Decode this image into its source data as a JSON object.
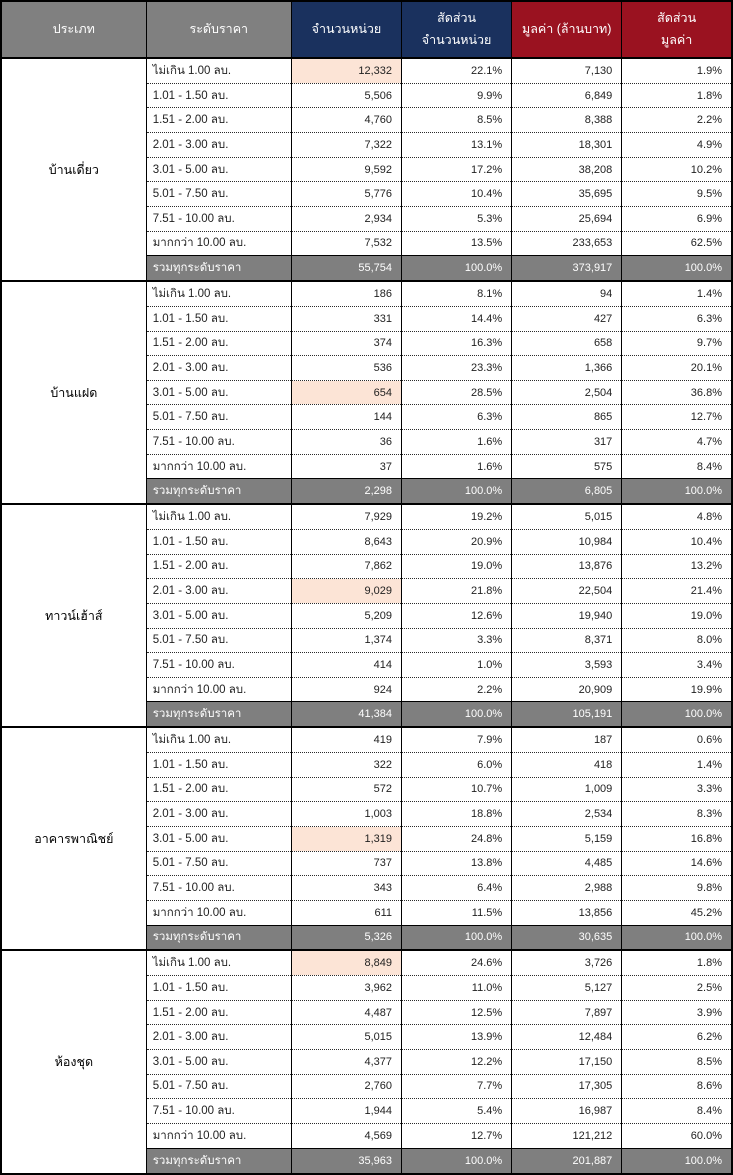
{
  "colors": {
    "header-gray": "#808080",
    "header-navy": "#1A315E",
    "header-red": "#9A1220",
    "highlight": "#FCE4D6",
    "total-gray": "#7F7F7F"
  },
  "chart_data": {
    "type": "table",
    "title": "",
    "columns": [
      {
        "line1": "ประเภท",
        "line2": ""
      },
      {
        "line1": "ระดับราคา",
        "line2": ""
      },
      {
        "line1": "จำนวนหน่วย",
        "line2": ""
      },
      {
        "line1": "สัดส่วน",
        "line2": "จำนวนหน่วย"
      },
      {
        "line1": "มูลค่า (ล้านบาท)",
        "line2": ""
      },
      {
        "line1": "สัดส่วน",
        "line2": "มูลค่า"
      }
    ],
    "total_label": "รวมทุกระดับราคา",
    "groups": [
      {
        "type": "บ้านเดี่ยว",
        "rows": [
          {
            "level": "ไม่เกิน 1.00 ลบ.",
            "units": "12,332",
            "units_share": "22.1%",
            "value": "7,130",
            "value_share": "1.9%",
            "highlight": true
          },
          {
            "level": "1.01 - 1.50 ลบ.",
            "units": "5,506",
            "units_share": "9.9%",
            "value": "6,849",
            "value_share": "1.8%",
            "highlight": false
          },
          {
            "level": "1.51 - 2.00 ลบ.",
            "units": "4,760",
            "units_share": "8.5%",
            "value": "8,388",
            "value_share": "2.2%",
            "highlight": false
          },
          {
            "level": "2.01 - 3.00 ลบ.",
            "units": "7,322",
            "units_share": "13.1%",
            "value": "18,301",
            "value_share": "4.9%",
            "highlight": false
          },
          {
            "level": "3.01 - 5.00 ลบ.",
            "units": "9,592",
            "units_share": "17.2%",
            "value": "38,208",
            "value_share": "10.2%",
            "highlight": false
          },
          {
            "level": "5.01 - 7.50 ลบ.",
            "units": "5,776",
            "units_share": "10.4%",
            "value": "35,695",
            "value_share": "9.5%",
            "highlight": false
          },
          {
            "level": "7.51 - 10.00 ลบ.",
            "units": "2,934",
            "units_share": "5.3%",
            "value": "25,694",
            "value_share": "6.9%",
            "highlight": false
          },
          {
            "level": "มากกว่า 10.00 ลบ.",
            "units": "7,532",
            "units_share": "13.5%",
            "value": "233,653",
            "value_share": "62.5%",
            "highlight": false
          }
        ],
        "total": {
          "units": "55,754",
          "units_share": "100.0%",
          "value": "373,917",
          "value_share": "100.0%"
        }
      },
      {
        "type": "บ้านแฝด",
        "rows": [
          {
            "level": "ไม่เกิน 1.00 ลบ.",
            "units": "186",
            "units_share": "8.1%",
            "value": "94",
            "value_share": "1.4%",
            "highlight": false
          },
          {
            "level": "1.01 - 1.50 ลบ.",
            "units": "331",
            "units_share": "14.4%",
            "value": "427",
            "value_share": "6.3%",
            "highlight": false
          },
          {
            "level": "1.51 - 2.00 ลบ.",
            "units": "374",
            "units_share": "16.3%",
            "value": "658",
            "value_share": "9.7%",
            "highlight": false
          },
          {
            "level": "2.01 - 3.00 ลบ.",
            "units": "536",
            "units_share": "23.3%",
            "value": "1,366",
            "value_share": "20.1%",
            "highlight": false
          },
          {
            "level": "3.01 - 5.00 ลบ.",
            "units": "654",
            "units_share": "28.5%",
            "value": "2,504",
            "value_share": "36.8%",
            "highlight": true
          },
          {
            "level": "5.01 - 7.50 ลบ.",
            "units": "144",
            "units_share": "6.3%",
            "value": "865",
            "value_share": "12.7%",
            "highlight": false
          },
          {
            "level": "7.51 - 10.00 ลบ.",
            "units": "36",
            "units_share": "1.6%",
            "value": "317",
            "value_share": "4.7%",
            "highlight": false
          },
          {
            "level": "มากกว่า 10.00 ลบ.",
            "units": "37",
            "units_share": "1.6%",
            "value": "575",
            "value_share": "8.4%",
            "highlight": false
          }
        ],
        "total": {
          "units": "2,298",
          "units_share": "100.0%",
          "value": "6,805",
          "value_share": "100.0%"
        }
      },
      {
        "type": "ทาวน์เฮ้าส์",
        "rows": [
          {
            "level": "ไม่เกิน 1.00 ลบ.",
            "units": "7,929",
            "units_share": "19.2%",
            "value": "5,015",
            "value_share": "4.8%",
            "highlight": false
          },
          {
            "level": "1.01 - 1.50 ลบ.",
            "units": "8,643",
            "units_share": "20.9%",
            "value": "10,984",
            "value_share": "10.4%",
            "highlight": false
          },
          {
            "level": "1.51 - 2.00 ลบ.",
            "units": "7,862",
            "units_share": "19.0%",
            "value": "13,876",
            "value_share": "13.2%",
            "highlight": false
          },
          {
            "level": "2.01 - 3.00 ลบ.",
            "units": "9,029",
            "units_share": "21.8%",
            "value": "22,504",
            "value_share": "21.4%",
            "highlight": true
          },
          {
            "level": "3.01 - 5.00 ลบ.",
            "units": "5,209",
            "units_share": "12.6%",
            "value": "19,940",
            "value_share": "19.0%",
            "highlight": false
          },
          {
            "level": "5.01 - 7.50 ลบ.",
            "units": "1,374",
            "units_share": "3.3%",
            "value": "8,371",
            "value_share": "8.0%",
            "highlight": false
          },
          {
            "level": "7.51 - 10.00 ลบ.",
            "units": "414",
            "units_share": "1.0%",
            "value": "3,593",
            "value_share": "3.4%",
            "highlight": false
          },
          {
            "level": "มากกว่า 10.00 ลบ.",
            "units": "924",
            "units_share": "2.2%",
            "value": "20,909",
            "value_share": "19.9%",
            "highlight": false
          }
        ],
        "total": {
          "units": "41,384",
          "units_share": "100.0%",
          "value": "105,191",
          "value_share": "100.0%"
        }
      },
      {
        "type": "อาคารพาณิชย์",
        "rows": [
          {
            "level": "ไม่เกิน 1.00 ลบ.",
            "units": "419",
            "units_share": "7.9%",
            "value": "187",
            "value_share": "0.6%",
            "highlight": false
          },
          {
            "level": "1.01 - 1.50 ลบ.",
            "units": "322",
            "units_share": "6.0%",
            "value": "418",
            "value_share": "1.4%",
            "highlight": false
          },
          {
            "level": "1.51 - 2.00 ลบ.",
            "units": "572",
            "units_share": "10.7%",
            "value": "1,009",
            "value_share": "3.3%",
            "highlight": false
          },
          {
            "level": "2.01 - 3.00 ลบ.",
            "units": "1,003",
            "units_share": "18.8%",
            "value": "2,534",
            "value_share": "8.3%",
            "highlight": false
          },
          {
            "level": "3.01 - 5.00 ลบ.",
            "units": "1,319",
            "units_share": "24.8%",
            "value": "5,159",
            "value_share": "16.8%",
            "highlight": true
          },
          {
            "level": "5.01 - 7.50 ลบ.",
            "units": "737",
            "units_share": "13.8%",
            "value": "4,485",
            "value_share": "14.6%",
            "highlight": false
          },
          {
            "level": "7.51 - 10.00 ลบ.",
            "units": "343",
            "units_share": "6.4%",
            "value": "2,988",
            "value_share": "9.8%",
            "highlight": false
          },
          {
            "level": "มากกว่า 10.00 ลบ.",
            "units": "611",
            "units_share": "11.5%",
            "value": "13,856",
            "value_share": "45.2%",
            "highlight": false
          }
        ],
        "total": {
          "units": "5,326",
          "units_share": "100.0%",
          "value": "30,635",
          "value_share": "100.0%"
        }
      },
      {
        "type": "ห้องชุด",
        "rows": [
          {
            "level": "ไม่เกิน 1.00 ลบ.",
            "units": "8,849",
            "units_share": "24.6%",
            "value": "3,726",
            "value_share": "1.8%",
            "highlight": true
          },
          {
            "level": "1.01 - 1.50 ลบ.",
            "units": "3,962",
            "units_share": "11.0%",
            "value": "5,127",
            "value_share": "2.5%",
            "highlight": false
          },
          {
            "level": "1.51 - 2.00 ลบ.",
            "units": "4,487",
            "units_share": "12.5%",
            "value": "7,897",
            "value_share": "3.9%",
            "highlight": false
          },
          {
            "level": "2.01 - 3.00 ลบ.",
            "units": "5,015",
            "units_share": "13.9%",
            "value": "12,484",
            "value_share": "6.2%",
            "highlight": false
          },
          {
            "level": "3.01 - 5.00 ลบ.",
            "units": "4,377",
            "units_share": "12.2%",
            "value": "17,150",
            "value_share": "8.5%",
            "highlight": false
          },
          {
            "level": "5.01 - 7.50 ลบ.",
            "units": "2,760",
            "units_share": "7.7%",
            "value": "17,305",
            "value_share": "8.6%",
            "highlight": false
          },
          {
            "level": "7.51 - 10.00 ลบ.",
            "units": "1,944",
            "units_share": "5.4%",
            "value": "16,987",
            "value_share": "8.4%",
            "highlight": false
          },
          {
            "level": "มากกว่า 10.00 ลบ.",
            "units": "4,569",
            "units_share": "12.7%",
            "value": "121,212",
            "value_share": "60.0%",
            "highlight": false
          }
        ],
        "total": {
          "units": "35,963",
          "units_share": "100.0%",
          "value": "201,887",
          "value_share": "100.0%"
        }
      }
    ]
  }
}
